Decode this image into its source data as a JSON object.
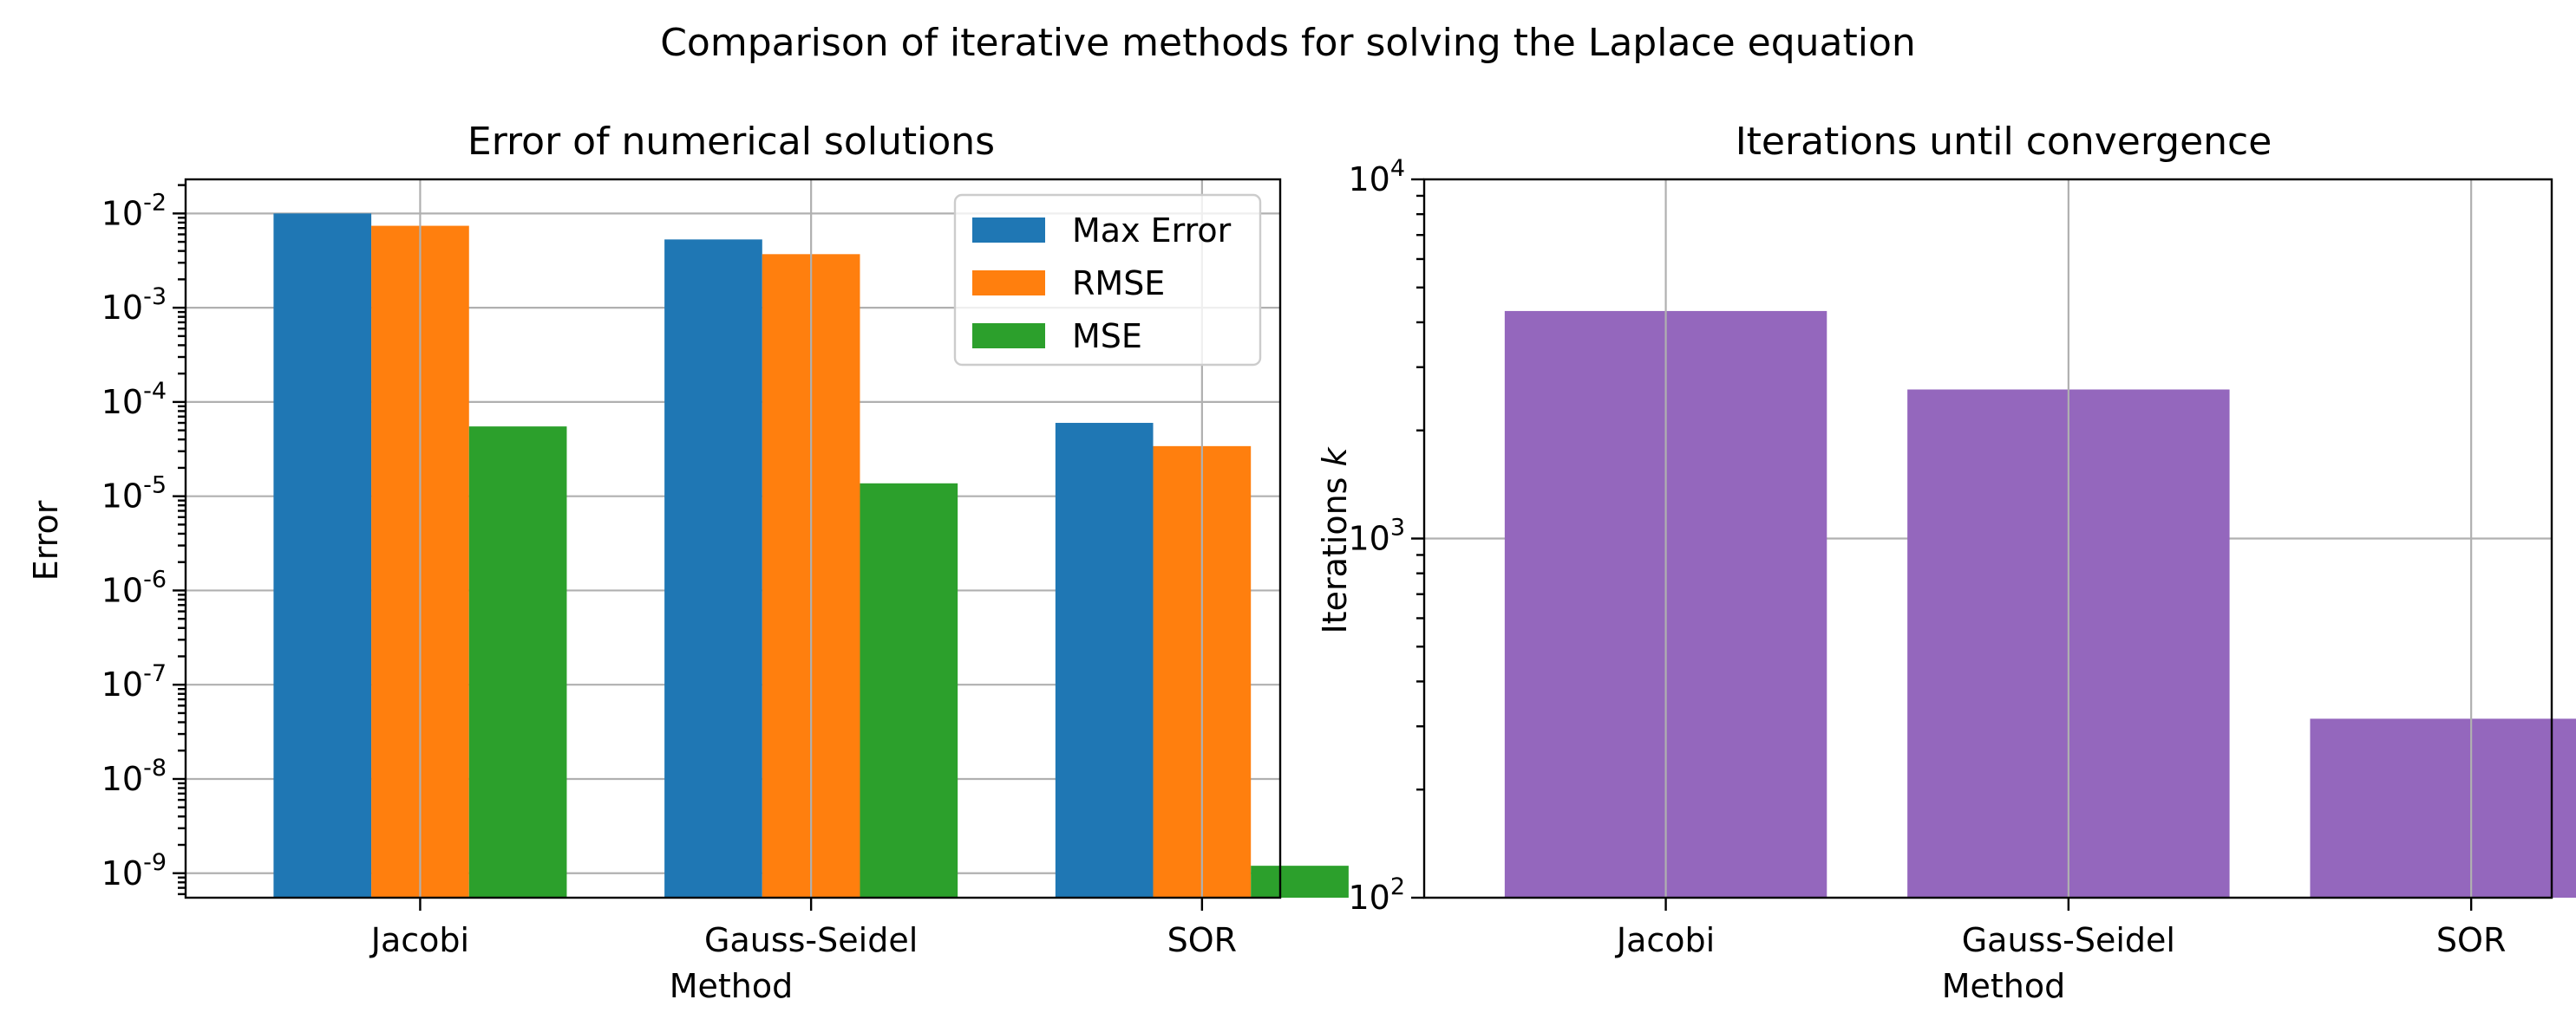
{
  "figure": {
    "suptitle": "Comparison of iterative methods for solving the Laplace equation"
  },
  "chart_data": [
    {
      "type": "bar",
      "title": "Error of numerical solutions",
      "xlabel": "Method",
      "ylabel": "Error",
      "yscale": "log",
      "ylim": [
        5.5e-10,
        0.023
      ],
      "yticks": [
        1e-09,
        1e-08,
        1e-07,
        1e-06,
        1e-05,
        0.0001,
        0.001,
        0.01
      ],
      "ytick_exponents": [
        "-9",
        "-8",
        "-7",
        "-6",
        "-5",
        "-4",
        "-3",
        "-2"
      ],
      "categories": [
        "Jacobi",
        "Gauss-Seidel",
        "SOR"
      ],
      "series": [
        {
          "name": "Max Error",
          "color": "#1f77b4",
          "values": [
            0.01,
            0.0053,
            6e-05
          ]
        },
        {
          "name": "RMSE",
          "color": "#ff7f0e",
          "values": [
            0.0074,
            0.0037,
            3.4e-05
          ]
        },
        {
          "name": "MSE",
          "color": "#2ca02c",
          "values": [
            5.5e-05,
            1.37e-05,
            1.2e-09
          ]
        }
      ],
      "legend": "upper right",
      "grid": true
    },
    {
      "type": "bar",
      "title": "Iterations until convergence",
      "xlabel": "Method",
      "ylabel_text": "Iterations ",
      "ylabel_var": "k",
      "yscale": "log",
      "ylim": [
        100,
        10000
      ],
      "yticks": [
        100,
        1000,
        10000
      ],
      "ytick_exponents": [
        "2",
        "3",
        "4"
      ],
      "categories": [
        "Jacobi",
        "Gauss-Seidel",
        "SOR"
      ],
      "series": [
        {
          "color": "#9467bd",
          "values": [
            4300,
            2600,
            315
          ]
        }
      ],
      "grid": true
    }
  ]
}
